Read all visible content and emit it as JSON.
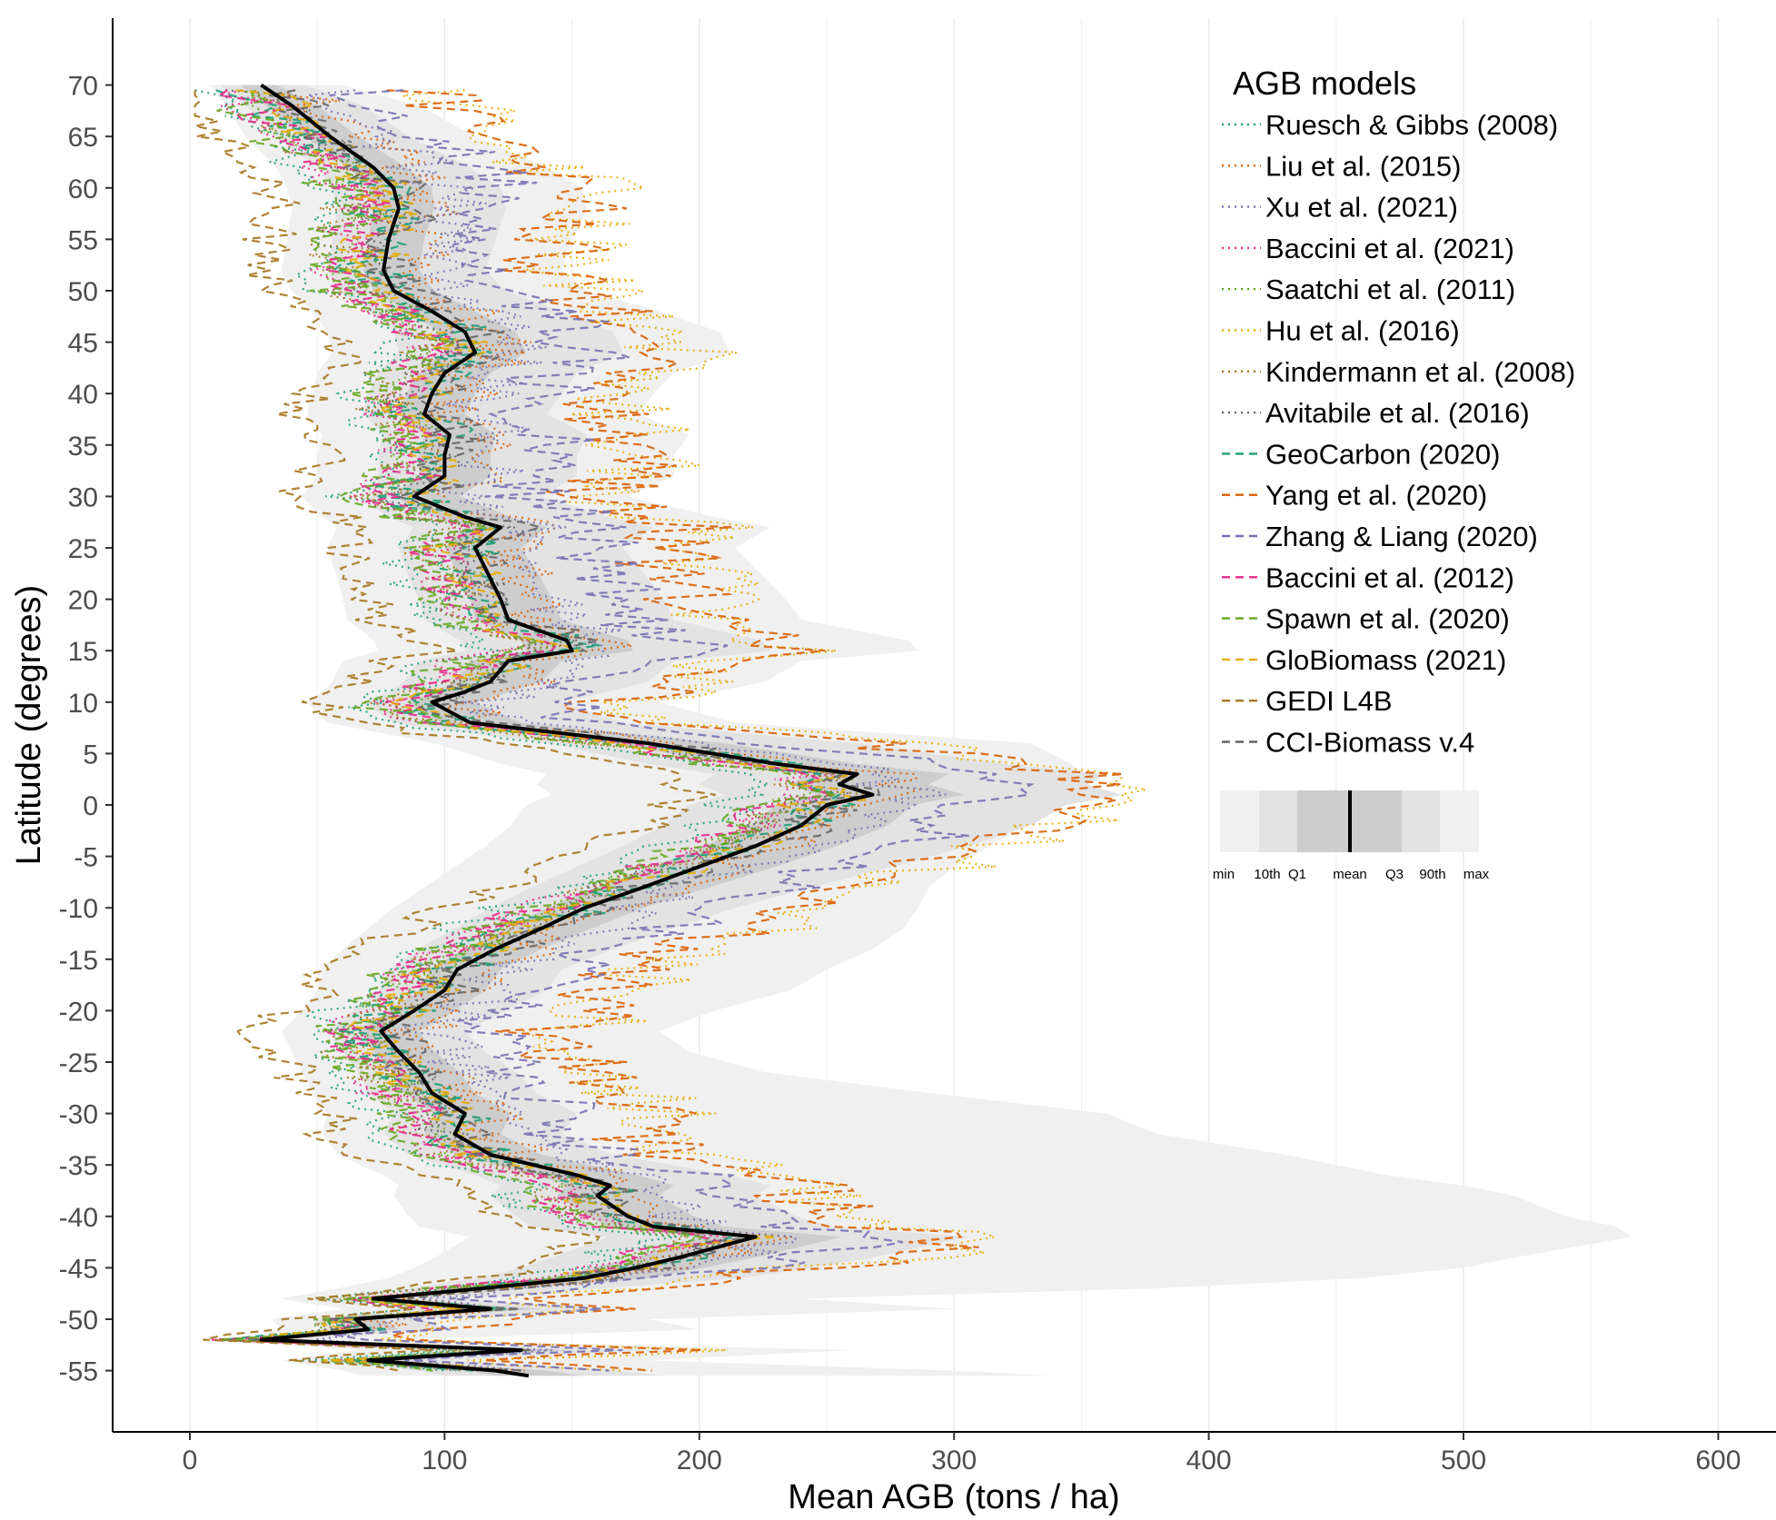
{
  "chart_data": {
    "type": "line",
    "orientation": "horizontal",
    "xlabel": "Mean AGB (tons / ha)",
    "ylabel": "Latitude (degrees)",
    "xlim": [
      -30,
      610
    ],
    "ylim": [
      -63,
      74
    ],
    "x_ticks": [
      0,
      100,
      200,
      300,
      400,
      500,
      600
    ],
    "x_tick_labels": [
      "0",
      "100",
      "200",
      "300",
      "400",
      "500",
      "600"
    ],
    "y_ticks": [
      70,
      65,
      60,
      55,
      50,
      45,
      40,
      35,
      30,
      25,
      20,
      15,
      10,
      5,
      0,
      -5,
      -10,
      -15,
      -20,
      -25,
      -30,
      -35,
      -40,
      -45,
      -50,
      -55
    ],
    "y_tick_labels": [
      "70",
      "65",
      "60",
      "55",
      "50",
      "45",
      "40",
      "35",
      "30",
      "25",
      "20",
      "15",
      "10",
      "5",
      "0",
      "-5",
      "-10",
      "-15",
      "-20",
      "-25",
      "-30",
      "-35",
      "-40",
      "-45",
      "-50",
      "-55"
    ],
    "grid": "vertical major and minor lines",
    "legend": {
      "title": "AGB models",
      "position": "top-right"
    },
    "series": [
      {
        "name": "Ruesch & Gibbs (2008)",
        "color": "#1b9e77",
        "dash": "dotted",
        "offset": -22,
        "amp": 0.8
      },
      {
        "name": "Liu et al. (2015)",
        "color": "#d95f02",
        "dash": "dotted",
        "offset": 12,
        "amp": 1.0
      },
      {
        "name": "Xu et al. (2021)",
        "color": "#7570b3",
        "dash": "dotted",
        "offset": 20,
        "amp": 1.0
      },
      {
        "name": "Baccini et al. (2021)",
        "color": "#e7298a",
        "dash": "dotted",
        "offset": -14,
        "amp": 0.9
      },
      {
        "name": "Saatchi et al. (2011)",
        "color": "#66a61e",
        "dash": "dotted",
        "offset": -10,
        "amp": 0.9
      },
      {
        "name": "Hu et al. (2016)",
        "color": "#e6ab02",
        "dash": "dotted",
        "offset": 60,
        "amp": 1.6
      },
      {
        "name": "Kindermann et al. (2008)",
        "color": "#a6761d",
        "dash": "dotted",
        "offset": -18,
        "amp": 1.1
      },
      {
        "name": "Avitabile et al. (2016)",
        "color": "#666666",
        "dash": "dotted",
        "offset": -4,
        "amp": 0.9
      },
      {
        "name": "GeoCarbon (2020)",
        "color": "#1b9e77",
        "dash": "dashed",
        "offset": -8,
        "amp": 1.1
      },
      {
        "name": "Yang et al. (2020)",
        "color": "#d95f02",
        "dash": "dashed",
        "offset": 55,
        "amp": 1.5
      },
      {
        "name": "Zhang & Liang (2020)",
        "color": "#7570b3",
        "dash": "dashed",
        "offset": 35,
        "amp": 1.3
      },
      {
        "name": "Baccini et al. (2012)",
        "color": "#e7298a",
        "dash": "dashed",
        "offset": -12,
        "amp": 0.9
      },
      {
        "name": "Spawn et al. (2020)",
        "color": "#66a61e",
        "dash": "dashed",
        "offset": -20,
        "amp": 1.0
      },
      {
        "name": "GloBiomass (2021)",
        "color": "#e6ab02",
        "dash": "dashed",
        "offset": -6,
        "amp": 1.0
      },
      {
        "name": "GEDI L4B",
        "color": "#a6761d",
        "dash": "dashed",
        "offset": -40,
        "amp": 0.7
      },
      {
        "name": "CCI-Biomass v.4",
        "color": "#666666",
        "dash": "dashed",
        "offset": 2,
        "amp": 1.0
      }
    ],
    "mean_profile": {
      "name": "mean",
      "latitude": [
        70,
        68,
        65,
        62,
        60,
        58,
        55,
        52,
        50,
        48,
        46,
        44,
        42,
        40,
        38,
        36,
        34,
        32,
        30,
        28,
        27,
        25,
        22,
        20,
        18,
        16,
        15,
        14,
        12,
        11,
        10,
        8,
        6,
        4,
        3,
        2,
        1,
        0,
        -2,
        -4,
        -6,
        -8,
        -10,
        -12,
        -14,
        -16,
        -18,
        -20,
        -22,
        -24,
        -26,
        -28,
        -30,
        -32,
        -34,
        -36,
        -37,
        -38,
        -40,
        -41,
        -42,
        -44,
        -45,
        -46,
        -47,
        -48,
        -49,
        -50,
        -51,
        -52,
        -53,
        -54,
        -55,
        -55.5
      ],
      "mean_agb": [
        28,
        40,
        55,
        72,
        80,
        82,
        78,
        76,
        80,
        95,
        108,
        112,
        100,
        95,
        92,
        102,
        100,
        100,
        88,
        108,
        122,
        112,
        118,
        122,
        125,
        148,
        150,
        125,
        118,
        108,
        95,
        110,
        180,
        230,
        262,
        255,
        268,
        250,
        240,
        222,
        200,
        178,
        155,
        138,
        120,
        105,
        100,
        88,
        75,
        82,
        90,
        95,
        108,
        104,
        118,
        152,
        165,
        160,
        172,
        182,
        222,
        192,
        175,
        155,
        115,
        72,
        118,
        65,
        70,
        28,
        130,
        70,
        120,
        133
      ],
      "band_q1": [
        20,
        30,
        45,
        62,
        70,
        72,
        70,
        68,
        72,
        85,
        98,
        100,
        90,
        85,
        82,
        92,
        90,
        90,
        80,
        96,
        108,
        100,
        106,
        110,
        112,
        130,
        132,
        110,
        104,
        96,
        85,
        98,
        165,
        212,
        242,
        236,
        246,
        230,
        220,
        202,
        182,
        160,
        140,
        124,
        108,
        94,
        90,
        78,
        66,
        72,
        80,
        84,
        96,
        92,
        104,
        136,
        148,
        144,
        156,
        164,
        200,
        174,
        158,
        140,
        104,
        64,
        106,
        58,
        62,
        24,
        118,
        62,
        108,
        120
      ],
      "band_q3": [
        34,
        50,
        66,
        85,
        95,
        96,
        92,
        90,
        96,
        112,
        128,
        132,
        118,
        112,
        108,
        120,
        118,
        118,
        106,
        126,
        140,
        130,
        138,
        142,
        146,
        172,
        174,
        146,
        138,
        126,
        112,
        130,
        210,
        262,
        298,
        290,
        304,
        284,
        274,
        254,
        230,
        204,
        178,
        158,
        138,
        122,
        116,
        104,
        90,
        96,
        106,
        112,
        126,
        122,
        138,
        176,
        190,
        184,
        198,
        210,
        256,
        222,
        202,
        180,
        134,
        84,
        138,
        76,
        82,
        34,
        150,
        82,
        140,
        154
      ],
      "band_p10": [
        12,
        22,
        34,
        50,
        56,
        58,
        56,
        54,
        58,
        70,
        80,
        82,
        74,
        70,
        68,
        76,
        74,
        74,
        66,
        78,
        88,
        82,
        86,
        90,
        92,
        106,
        108,
        90,
        84,
        78,
        68,
        80,
        140,
        180,
        206,
        200,
        210,
        196,
        186,
        170,
        152,
        134,
        118,
        104,
        90,
        78,
        74,
        64,
        54,
        60,
        66,
        70,
        80,
        76,
        86,
        112,
        122,
        118,
        128,
        134,
        164,
        142,
        130,
        114,
        86,
        52,
        88,
        48,
        52,
        20,
        98,
        52,
        90,
        100
      ],
      "band_p90": [
        45,
        68,
        86,
        110,
        122,
        124,
        120,
        116,
        124,
        146,
        166,
        170,
        152,
        146,
        140,
        156,
        152,
        152,
        138,
        164,
        182,
        170,
        180,
        186,
        190,
        224,
        228,
        190,
        180,
        164,
        146,
        170,
        262,
        320,
        360,
        352,
        366,
        344,
        330,
        306,
        276,
        244,
        214,
        190,
        166,
        146,
        140,
        124,
        108,
        116,
        128,
        136,
        152,
        146,
        166,
        212,
        228,
        222,
        238,
        252,
        306,
        268,
        244,
        216,
        162,
        102,
        166,
        92,
        100,
        42,
        180,
        100,
        168,
        186
      ],
      "band_min": [
        8,
        14,
        22,
        34,
        38,
        40,
        38,
        36,
        40,
        48,
        54,
        56,
        50,
        48,
        46,
        52,
        50,
        50,
        44,
        52,
        58,
        54,
        58,
        60,
        62,
        72,
        74,
        60,
        56,
        52,
        46,
        54,
        96,
        122,
        140,
        136,
        142,
        132,
        126,
        116,
        104,
        92,
        80,
        70,
        60,
        52,
        50,
        44,
        36,
        40,
        44,
        48,
        54,
        52,
        58,
        76,
        82,
        80,
        86,
        90,
        110,
        96,
        88,
        78,
        58,
        36,
        60,
        32,
        36,
        14,
        66,
        36,
        60,
        68
      ],
      "band_max": [
        60,
        90,
        112,
        140,
        154,
        156,
        150,
        146,
        156,
        184,
        208,
        212,
        190,
        182,
        176,
        196,
        190,
        190,
        172,
        206,
        228,
        214,
        226,
        234,
        240,
        282,
        286,
        240,
        226,
        206,
        184,
        214,
        330,
        346,
        352,
        344,
        356,
        336,
        328,
        314,
        300,
        290,
        286,
        280,
        268,
        250,
        236,
        206,
        184,
        196,
        226,
        290,
        360,
        380,
        430,
        470,
        500,
        520,
        540,
        560,
        566,
        520,
        500,
        460,
        380,
        240,
        300,
        180,
        200,
        80,
        260,
        180,
        300,
        340
      ]
    },
    "legend_key": {
      "labels": [
        "min",
        "10th",
        "Q1",
        "mean",
        "Q3",
        "90th",
        "max"
      ],
      "colors": [
        "#f0f0f0",
        "#e3e3e3",
        "#cdcdcd"
      ]
    }
  }
}
